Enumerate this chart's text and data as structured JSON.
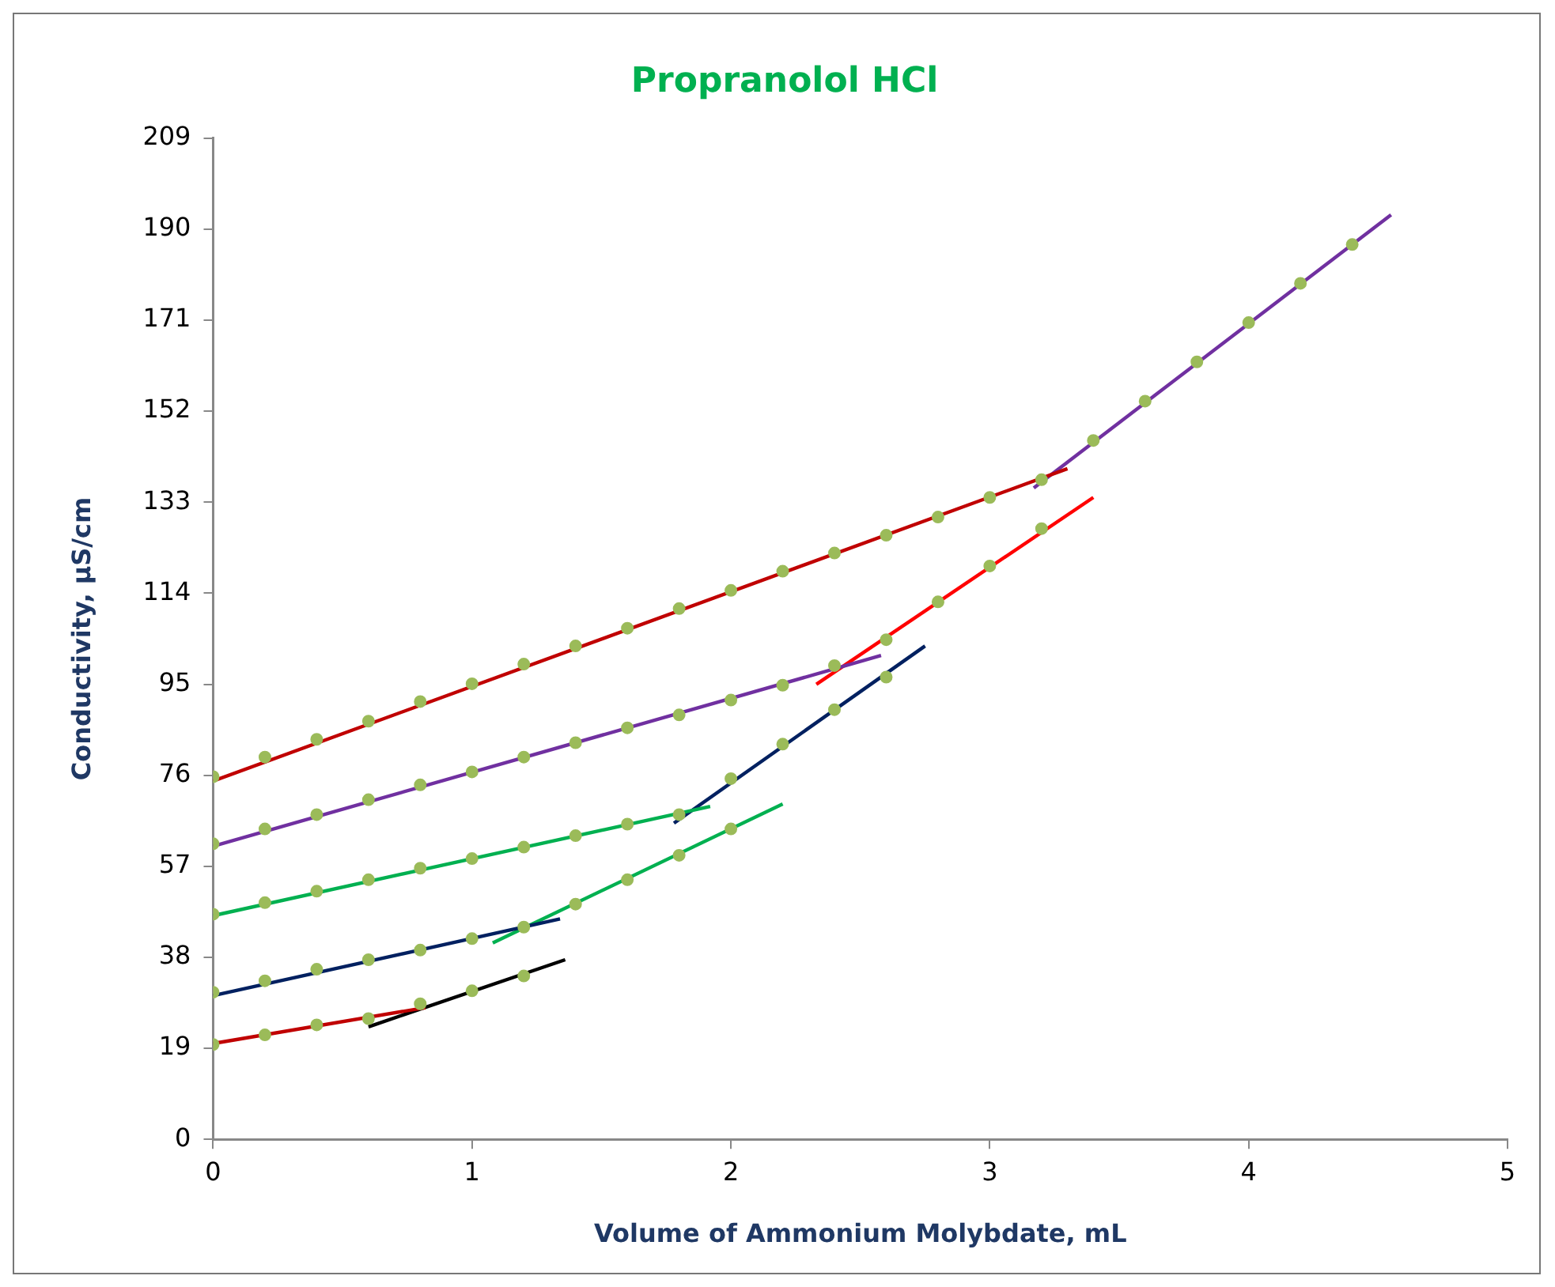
{
  "chart_data": {
    "type": "scatter",
    "title": "Propranolol HCl",
    "xlabel": "Volume of Ammonium Molybdate, mL",
    "ylabel": "Conductivity, µS/cm",
    "xlim": [
      0,
      5
    ],
    "xticks": [
      0,
      1,
      2,
      3,
      4,
      5
    ],
    "ylim": [
      0,
      209
    ],
    "yticks": [
      0,
      19,
      38,
      57,
      76,
      95,
      114,
      133,
      152,
      171,
      190,
      209
    ],
    "grid": false,
    "legend": false,
    "series": [
      {
        "marker": "circle",
        "color": "#9bbb59",
        "x": [
          0,
          0.2,
          0.4,
          0.6,
          0.8,
          1,
          1.2,
          1.4,
          1.6,
          1.8,
          2,
          2.2,
          2.4,
          2.6,
          2.8,
          3,
          3.2,
          3.4,
          3.6,
          3.8,
          4,
          4.2,
          4.4
        ],
        "values": [
          75.7,
          79.8,
          83.5,
          87.3,
          91.4,
          95.1,
          99.2,
          103,
          106.7,
          110.8,
          114.6,
          118.6,
          122.4,
          126.1,
          129.9,
          134,
          137.7,
          145.9,
          154.1,
          162.3,
          170.5,
          178.7,
          186.8
        ]
      },
      {
        "marker": "circle",
        "color": "#9bbb59",
        "x": [
          0,
          0.2,
          0.4,
          0.6,
          0.8,
          1,
          1.2,
          1.4,
          1.6,
          1.8,
          2,
          2.2,
          2.4,
          2.6,
          2.8,
          3,
          3.2
        ],
        "values": [
          61.7,
          64.8,
          67.8,
          70.9,
          74,
          76.7,
          79.8,
          82.8,
          85.9,
          88.6,
          91.7,
          94.8,
          98.9,
          104.3,
          112.2,
          119.7,
          127.5
        ]
      },
      {
        "marker": "circle",
        "color": "#9bbb59",
        "x": [
          0,
          0.2,
          0.4,
          0.6,
          0.8,
          1,
          1.2,
          1.4,
          1.6,
          1.8,
          2,
          2.2,
          2.4,
          2.6
        ],
        "values": [
          47,
          49.4,
          51.8,
          54.2,
          56.6,
          58.6,
          61,
          63.4,
          65.8,
          67.8,
          75.3,
          82.5,
          89.7,
          96.5
        ]
      },
      {
        "marker": "circle",
        "color": "#9bbb59",
        "x": [
          0,
          0.2,
          0.4,
          0.6,
          0.8,
          1,
          1.2,
          1.4,
          1.6,
          1.8,
          2
        ],
        "values": [
          30.7,
          33.1,
          35.5,
          37.5,
          39.5,
          41.9,
          44.3,
          49.1,
          54.2,
          59.3,
          64.8
        ]
      },
      {
        "marker": "circle",
        "color": "#9bbb59",
        "x": [
          0,
          0.2,
          0.4,
          0.6,
          0.8,
          1,
          1.2
        ],
        "values": [
          19.8,
          21.8,
          23.9,
          25.2,
          28.3,
          31,
          34.1
        ]
      },
      {
        "type": "line",
        "marker": "none",
        "color": "#c00000",
        "x": [
          0,
          3.3
        ],
        "values": [
          74.8,
          140
        ]
      },
      {
        "type": "line",
        "marker": "none",
        "color": "#7030a0",
        "x": [
          3.17,
          4.55
        ],
        "values": [
          136,
          193
        ]
      },
      {
        "type": "line",
        "marker": "none",
        "color": "#7030a0",
        "x": [
          0,
          2.58
        ],
        "values": [
          61.2,
          101
        ]
      },
      {
        "type": "line",
        "marker": "none",
        "color": "#ff0000",
        "x": [
          2.33,
          3.4
        ],
        "values": [
          95,
          134
        ]
      },
      {
        "type": "line",
        "marker": "none",
        "color": "#00b050",
        "x": [
          0,
          1.92
        ],
        "values": [
          46.7,
          69.5
        ]
      },
      {
        "type": "line",
        "marker": "none",
        "color": "#002060",
        "x": [
          1.78,
          2.75
        ],
        "values": [
          66,
          103
        ]
      },
      {
        "type": "line",
        "marker": "none",
        "color": "#002060",
        "x": [
          0,
          1.34
        ],
        "values": [
          30,
          46
        ]
      },
      {
        "type": "line",
        "marker": "none",
        "color": "#00b050",
        "x": [
          1.08,
          2.2
        ],
        "values": [
          41,
          70
        ]
      },
      {
        "type": "line",
        "marker": "none",
        "color": "#c00000",
        "x": [
          0,
          0.82
        ],
        "values": [
          20,
          27.5
        ]
      },
      {
        "type": "line",
        "marker": "none",
        "color": "#000000",
        "x": [
          0.6,
          1.36
        ],
        "values": [
          23.5,
          37.5
        ]
      }
    ]
  }
}
